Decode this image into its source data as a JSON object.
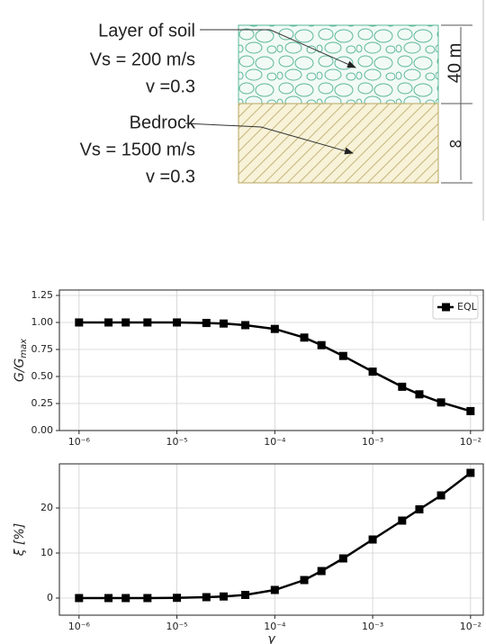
{
  "diagram": {
    "soil": {
      "label": "Layer of soil",
      "vs": "Vs = 200 m/s",
      "nu": "v =0.3",
      "thickness": "40 m"
    },
    "bedrock": {
      "label": "Bedrock",
      "vs": "Vs = 1500 m/s",
      "nu": "v =0.3",
      "thickness": "∞"
    }
  },
  "chart_data": [
    {
      "type": "line",
      "xscale": "log",
      "grid": true,
      "legend": "upper right",
      "ylabel": "G/G",
      "ylabel_subscript": "max",
      "x": [
        1e-06,
        2e-06,
        3e-06,
        5e-06,
        1e-05,
        2e-05,
        3e-05,
        5e-05,
        0.0001,
        0.0002,
        0.0003,
        0.0005,
        0.001,
        0.002,
        0.003,
        0.005,
        0.01
      ],
      "series": [
        {
          "name": "EQL",
          "color": "#000000",
          "values": [
            1.0,
            1.0,
            1.0,
            1.0,
            1.0,
            0.995,
            0.99,
            0.975,
            0.94,
            0.86,
            0.79,
            0.69,
            0.545,
            0.405,
            0.335,
            0.26,
            0.18
          ]
        }
      ],
      "xlim": [
        6.3e-07,
        0.0135
      ],
      "xticks": [
        {
          "value": 1e-06,
          "label": "10⁻⁶"
        },
        {
          "value": 1e-05,
          "label": "10⁻⁵"
        },
        {
          "value": 0.0001,
          "label": "10⁻⁴"
        },
        {
          "value": 0.001,
          "label": "10⁻³"
        },
        {
          "value": 0.01,
          "label": "10⁻²"
        }
      ],
      "ylim": [
        0,
        1.3
      ],
      "yticks": [
        {
          "value": 0,
          "label": "0.00"
        },
        {
          "value": 0.25,
          "label": "0.25"
        },
        {
          "value": 0.5,
          "label": "0.50"
        },
        {
          "value": 0.75,
          "label": "0.75"
        },
        {
          "value": 1,
          "label": "1.00"
        },
        {
          "value": 1.25,
          "label": "1.25"
        }
      ]
    },
    {
      "type": "line",
      "xscale": "log",
      "grid": true,
      "ylabel": "ξ [%]",
      "xlabel": "γ",
      "x": [
        1e-06,
        2e-06,
        3e-06,
        5e-06,
        1e-05,
        2e-05,
        3e-05,
        5e-05,
        0.0001,
        0.0002,
        0.0003,
        0.0005,
        0.001,
        0.002,
        0.003,
        0.005,
        0.01
      ],
      "series": [
        {
          "color": "#000000",
          "values": [
            0,
            0,
            0,
            0,
            0.05,
            0.2,
            0.35,
            0.7,
            1.8,
            4.0,
            6.0,
            8.8,
            13.0,
            17.2,
            19.7,
            22.8,
            27.8
          ]
        }
      ],
      "xlim": [
        6.3e-07,
        0.0135
      ],
      "xticks": [
        {
          "value": 1e-06,
          "label": "10⁻⁶"
        },
        {
          "value": 1e-05,
          "label": "10⁻⁵"
        },
        {
          "value": 0.0001,
          "label": "10⁻⁴"
        },
        {
          "value": 0.001,
          "label": "10⁻³"
        },
        {
          "value": 0.01,
          "label": "10⁻²"
        }
      ],
      "ylim": [
        -3.8,
        29.8
      ],
      "yticks": [
        0,
        10,
        20
      ]
    }
  ]
}
